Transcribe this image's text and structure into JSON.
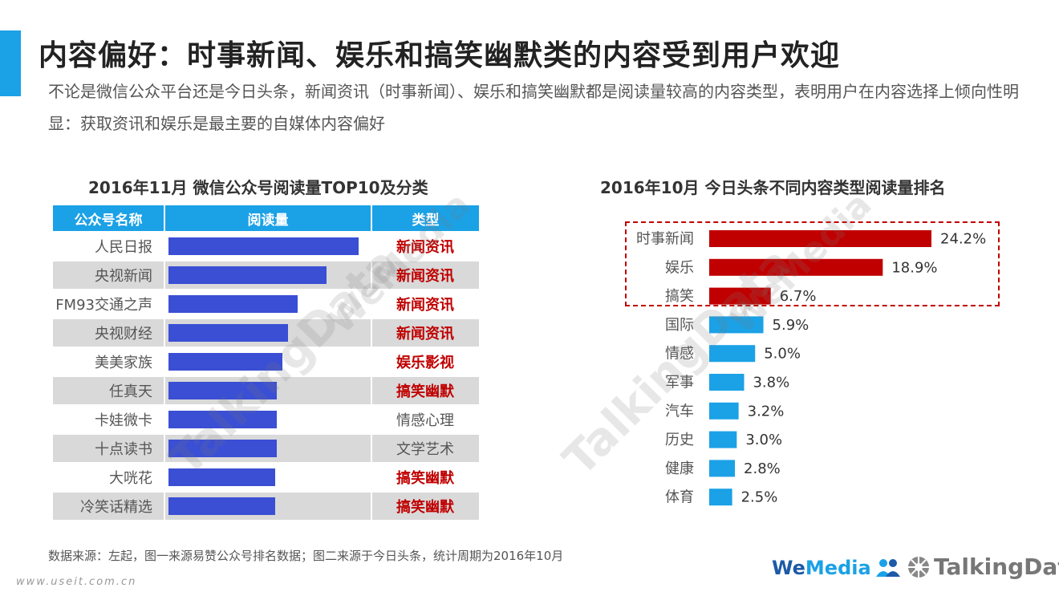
{
  "header": {
    "title": "内容偏好：时事新闻、娱乐和搞笑幽默类的内容受到用户欢迎",
    "subtitle": "不论是微信公众平台还是今日头条，新闻资讯（时事新闻）、娱乐和搞笑幽默都是阅读量较高的内容类型，表明用户在内容选择上倾向性明显：获取资讯和娱乐是最主要的自媒体内容偏好"
  },
  "colors": {
    "accent": "#1ba1e6",
    "bar_blue": "#3a4fd4",
    "highlight_red": "#c00000",
    "light_blue": "#1ba1e6"
  },
  "chart_data": [
    {
      "type": "table",
      "title": "2016年11月 微信公众号阅读量TOP10及分类",
      "columns": [
        "公众号名称",
        "阅读量",
        "类型"
      ],
      "rows": [
        {
          "name": "人民日报",
          "value": 100,
          "category": "新闻资讯",
          "highlight": true
        },
        {
          "name": "央视新闻",
          "value": 83,
          "category": "新闻资讯",
          "highlight": true
        },
        {
          "name": "FM93交通之声",
          "value": 68,
          "category": "新闻资讯",
          "highlight": true
        },
        {
          "name": "央视财经",
          "value": 63,
          "category": "新闻资讯",
          "highlight": true
        },
        {
          "name": "美美家族",
          "value": 60,
          "category": "娱乐影视",
          "highlight": true
        },
        {
          "name": "任真天",
          "value": 57,
          "category": "搞笑幽默",
          "highlight": true
        },
        {
          "name": "卡娃微卡",
          "value": 57,
          "category": "情感心理",
          "highlight": false
        },
        {
          "name": "十点读书",
          "value": 57,
          "category": "文学艺术",
          "highlight": false
        },
        {
          "name": "大咣花",
          "value": 56,
          "category": "搞笑幽默",
          "highlight": true
        },
        {
          "name": "冷笑话精选",
          "value": 56,
          "category": "搞笑幽默",
          "highlight": true
        }
      ]
    },
    {
      "type": "bar",
      "title": "2016年10月 今日头条不同内容类型阅读量排名",
      "categories": [
        "时事新闻",
        "娱乐",
        "搞笑",
        "国际",
        "情感",
        "军事",
        "汽车",
        "历史",
        "健康",
        "体育"
      ],
      "values": [
        24.2,
        18.9,
        6.7,
        5.9,
        5.0,
        3.8,
        3.2,
        3.0,
        2.8,
        2.5
      ],
      "labels": [
        "24.2%",
        "18.9%",
        "6.7%",
        "5.9%",
        "5.0%",
        "3.8%",
        "3.2%",
        "3.0%",
        "2.8%",
        "2.5%"
      ],
      "highlighted_top": 3,
      "xlim": [
        0,
        24.2
      ]
    }
  ],
  "footer": {
    "source": "数据来源：左起，图一来源易赞公众号排名数据；图二来源于今日头条，统计周期为2016年10月",
    "url": "www.useit.com.cn",
    "logo_wemedia_a": "We",
    "logo_wemedia_b": "Media",
    "logo_talkingdata": "TalkingData"
  },
  "watermarks": [
    "TalkingData",
    "WeMedia"
  ]
}
